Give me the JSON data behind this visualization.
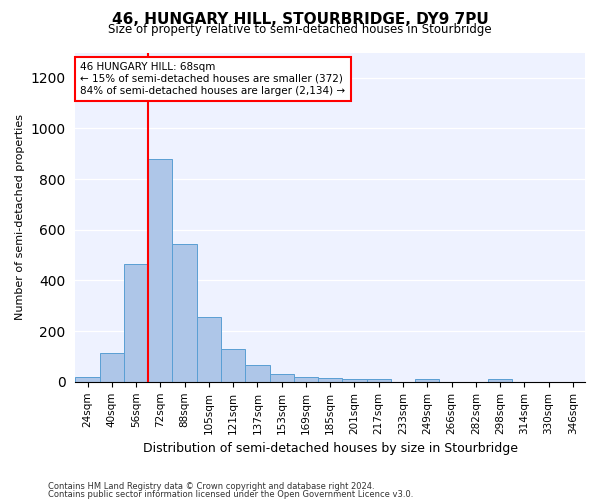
{
  "title": "46, HUNGARY HILL, STOURBRIDGE, DY9 7PU",
  "subtitle": "Size of property relative to semi-detached houses in Stourbridge",
  "xlabel": "Distribution of semi-detached houses by size in Stourbridge",
  "ylabel": "Number of semi-detached properties",
  "footnote1": "Contains HM Land Registry data © Crown copyright and database right 2024.",
  "footnote2": "Contains public sector information licensed under the Open Government Licence v3.0.",
  "categories": [
    "24sqm",
    "40sqm",
    "56sqm",
    "72sqm",
    "88sqm",
    "105sqm",
    "121sqm",
    "137sqm",
    "153sqm",
    "169sqm",
    "185sqm",
    "201sqm",
    "217sqm",
    "233sqm",
    "249sqm",
    "266sqm",
    "282sqm",
    "298sqm",
    "314sqm",
    "330sqm",
    "346sqm"
  ],
  "values": [
    20,
    115,
    465,
    880,
    545,
    255,
    130,
    65,
    30,
    20,
    15,
    10,
    10,
    0,
    10,
    0,
    0,
    10,
    0,
    0,
    0
  ],
  "bar_color": "#aec6e8",
  "bar_edge_color": "#5a9fd4",
  "ylim": [
    0,
    1300
  ],
  "yticks": [
    0,
    200,
    400,
    600,
    800,
    1000,
    1200
  ],
  "property_label": "46 HUNGARY HILL: 68sqm",
  "annotation_line1": "← 15% of semi-detached houses are smaller (372)",
  "annotation_line2": "84% of semi-detached houses are larger (2,134) →",
  "vline_x_index": 2.5,
  "bg_color": "#eef2ff"
}
